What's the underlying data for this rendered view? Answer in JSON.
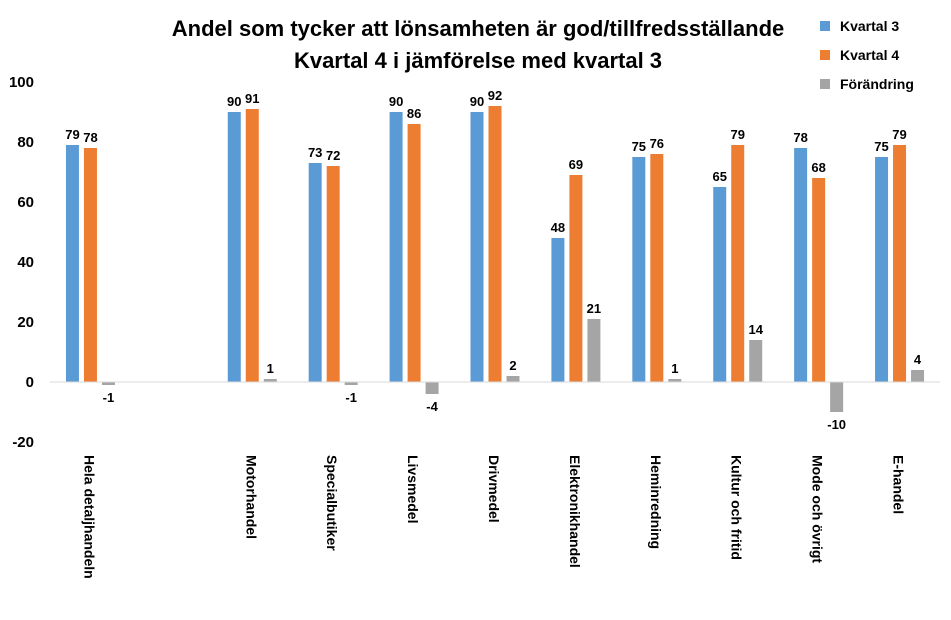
{
  "chart_data": {
    "type": "bar",
    "title": [
      "Andel som tycker att lönsamheten är god/tillfredsställande",
      "Kvartal 4 i jämförelse med kvartal 3"
    ],
    "categories": [
      "Hela detaljhandeln",
      "",
      "Motorhandel",
      "Specialbutiker",
      "Livsmedel",
      "Drivmedel",
      "Elektronikhandel",
      "Heminredning",
      "Kultur och fritid",
      "Mode och övrigt",
      "E-handel"
    ],
    "series": [
      {
        "name": "Kvartal 3",
        "color": "#5B9BD5",
        "values": [
          79,
          null,
          90,
          73,
          90,
          90,
          48,
          75,
          65,
          78,
          75
        ]
      },
      {
        "name": "Kvartal 4",
        "color": "#ED7D31",
        "values": [
          78,
          null,
          91,
          72,
          86,
          92,
          69,
          76,
          79,
          68,
          79
        ]
      },
      {
        "name": "Förändring",
        "color": "#A5A5A5",
        "values": [
          -1,
          null,
          1,
          -1,
          -4,
          2,
          21,
          1,
          14,
          -10,
          4
        ]
      }
    ],
    "ylim": [
      -20,
      100
    ],
    "yticks": [
      -20,
      0,
      20,
      40,
      60,
      80,
      100
    ],
    "xlabel": "",
    "ylabel": "",
    "grid": false,
    "legend": "top-right",
    "data_labels": true
  }
}
